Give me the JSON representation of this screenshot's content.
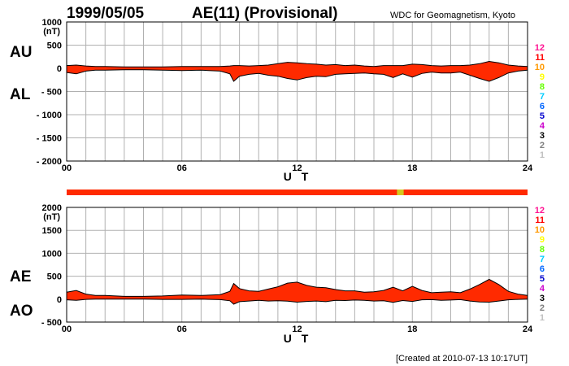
{
  "header": {
    "date": "1999/05/05",
    "title": "AE(11) (Provisional)",
    "source": "WDC for Geomagnetism, Kyoto"
  },
  "footer": {
    "created": "[Created at 2010-07-13 10:17UT]"
  },
  "colors": {
    "fill": "#ff2a00",
    "status_bar": "#ff2a00",
    "status_highlight": "#d4c81e",
    "grid": "#b0b0b0"
  },
  "legend": [
    {
      "label": "12",
      "color": "#ff1493"
    },
    {
      "label": "11",
      "color": "#ff0000"
    },
    {
      "label": "10",
      "color": "#ff9900"
    },
    {
      "label": "9",
      "color": "#ffff00"
    },
    {
      "label": "8",
      "color": "#66ff00"
    },
    {
      "label": "7",
      "color": "#00ccff"
    },
    {
      "label": "6",
      "color": "#0066ff"
    },
    {
      "label": "5",
      "color": "#0000cc"
    },
    {
      "label": "4",
      "color": "#cc00cc"
    },
    {
      "label": "3",
      "color": "#000000"
    },
    {
      "label": "2",
      "color": "#808080"
    },
    {
      "label": "1",
      "color": "#c0c0c0"
    }
  ],
  "status_bar": {
    "highlight_hours": [
      17.2,
      17.55
    ]
  },
  "chart_data": [
    {
      "type": "area",
      "panel": "AU/AL",
      "upper_label": "AU",
      "lower_label": "AL",
      "ylabel": "(nT)",
      "xlabel": "U T",
      "ylim": [
        -2000,
        1000
      ],
      "yticks": [
        1000,
        500,
        0,
        -500,
        -1000,
        -1500,
        -2000
      ],
      "ytick_labels": [
        "1000",
        "500",
        "0",
        "- 500",
        "- 1000",
        "- 1500",
        "- 2000"
      ],
      "xlim": [
        0,
        24
      ],
      "xticks": [
        0,
        6,
        12,
        18,
        24
      ],
      "xtick_labels": [
        "00",
        "06",
        "12",
        "18",
        "24"
      ],
      "x": [
        0,
        0.5,
        1,
        1.5,
        2,
        3,
        4,
        5,
        6,
        7,
        8,
        8.5,
        8.7,
        9,
        9.5,
        10,
        10.5,
        11,
        11.5,
        12,
        12.5,
        13,
        13.5,
        14,
        14.5,
        15,
        15.5,
        16,
        16.5,
        17,
        17.5,
        18,
        18.5,
        19,
        19.5,
        20,
        20.5,
        21,
        21.5,
        22,
        22.5,
        23,
        23.5,
        24
      ],
      "series": [
        {
          "name": "AU",
          "values": [
            60,
            70,
            50,
            40,
            40,
            30,
            30,
            30,
            40,
            40,
            40,
            50,
            60,
            60,
            50,
            60,
            70,
            100,
            130,
            120,
            100,
            90,
            70,
            80,
            60,
            70,
            50,
            40,
            60,
            60,
            60,
            90,
            80,
            60,
            50,
            60,
            60,
            70,
            100,
            150,
            120,
            70,
            50,
            40
          ]
        },
        {
          "name": "AL",
          "values": [
            -90,
            -120,
            -60,
            -40,
            -40,
            -30,
            -30,
            -40,
            -50,
            -40,
            -60,
            -120,
            -280,
            -170,
            -130,
            -110,
            -150,
            -170,
            -220,
            -250,
            -200,
            -170,
            -180,
            -130,
            -120,
            -110,
            -100,
            -120,
            -130,
            -200,
            -120,
            -190,
            -110,
            -80,
            -100,
            -100,
            -80,
            -150,
            -220,
            -280,
            -200,
            -100,
            -60,
            -40
          ]
        }
      ]
    },
    {
      "type": "area",
      "panel": "AE/AO",
      "upper_label": "AE",
      "lower_label": "AO",
      "ylabel": "(nT)",
      "xlabel": "U T",
      "ylim": [
        -500,
        2000
      ],
      "yticks": [
        2000,
        1500,
        1000,
        500,
        0,
        -500
      ],
      "ytick_labels": [
        "2000",
        "1500",
        "1000",
        "500",
        "0",
        "- 500"
      ],
      "xlim": [
        0,
        24
      ],
      "xticks": [
        0,
        6,
        12,
        18,
        24
      ],
      "xtick_labels": [
        "00",
        "06",
        "12",
        "18",
        "24"
      ],
      "x": [
        0,
        0.5,
        1,
        1.5,
        2,
        3,
        4,
        5,
        6,
        7,
        8,
        8.5,
        8.7,
        9,
        9.5,
        10,
        10.5,
        11,
        11.5,
        12,
        12.5,
        13,
        13.5,
        14,
        14.5,
        15,
        15.5,
        16,
        16.5,
        17,
        17.5,
        18,
        18.5,
        19,
        19.5,
        20,
        20.5,
        21,
        21.5,
        22,
        22.5,
        23,
        23.5,
        24
      ],
      "series": [
        {
          "name": "AE",
          "values": [
            150,
            190,
            110,
            80,
            80,
            60,
            60,
            70,
            90,
            80,
            100,
            170,
            340,
            230,
            180,
            170,
            220,
            270,
            350,
            370,
            300,
            260,
            250,
            210,
            180,
            180,
            150,
            160,
            190,
            260,
            180,
            280,
            190,
            140,
            150,
            160,
            140,
            220,
            320,
            430,
            320,
            170,
            110,
            80
          ]
        },
        {
          "name": "AO",
          "values": [
            -15,
            -25,
            -5,
            0,
            0,
            0,
            0,
            -5,
            -5,
            0,
            -10,
            -35,
            -110,
            -55,
            -40,
            -25,
            -40,
            -35,
            -45,
            -65,
            -50,
            -40,
            -55,
            -25,
            -30,
            -20,
            -25,
            -40,
            -35,
            -70,
            -30,
            -50,
            -15,
            -10,
            -25,
            -20,
            -10,
            -40,
            -60,
            -65,
            -40,
            -15,
            -5,
            0
          ]
        }
      ]
    }
  ]
}
